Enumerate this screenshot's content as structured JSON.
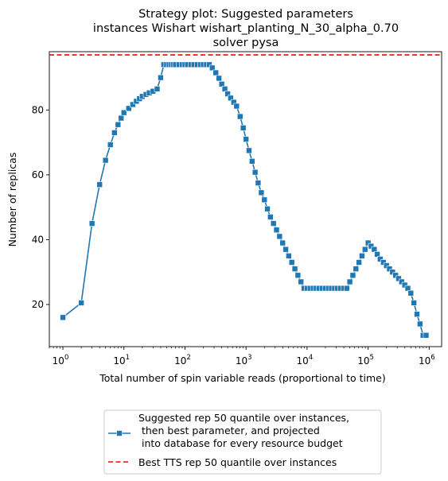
{
  "chart_data": {
    "type": "line",
    "title": [
      "Strategy plot: Suggested parameters",
      "instances Wishart wishart_planting_N_30_alpha_0.70",
      "solver pysa"
    ],
    "xlabel": "Total number of spin variable reads (proportional to time)",
    "ylabel": "Number of replicas",
    "x_scale": "log",
    "xlim": [
      0.6,
      1600000
    ],
    "ylim": [
      7,
      98
    ],
    "x_ticks": [
      {
        "value": 1,
        "base": "10",
        "exp": "0"
      },
      {
        "value": 10,
        "base": "10",
        "exp": "1"
      },
      {
        "value": 100,
        "base": "10",
        "exp": "2"
      },
      {
        "value": 1000,
        "base": "10",
        "exp": "3"
      },
      {
        "value": 10000,
        "base": "10",
        "exp": "4"
      },
      {
        "value": 100000,
        "base": "10",
        "exp": "5"
      },
      {
        "value": 1000000,
        "base": "10",
        "exp": "6"
      }
    ],
    "y_ticks": [
      20,
      40,
      60,
      80
    ],
    "grid": false,
    "legend_position": "below chart",
    "series": [
      {
        "name": "Suggested rep 50 quantile over instances,\n then best parameter, and projected\n into database for every resource budget",
        "style": "solid line with square markers",
        "color": "#1f77b4",
        "x": [
          1,
          2,
          3,
          4,
          5,
          6,
          7,
          8,
          9,
          10,
          12,
          14,
          16,
          18,
          20,
          23,
          26,
          30,
          35,
          40,
          45,
          50,
          55,
          60,
          65,
          70,
          80,
          90,
          100,
          110,
          125,
          140,
          160,
          180,
          200,
          225,
          250,
          280,
          320,
          360,
          400,
          450,
          500,
          560,
          630,
          700,
          800,
          900,
          1000,
          1120,
          1260,
          1410,
          1580,
          1780,
          2000,
          2240,
          2510,
          2820,
          3160,
          3550,
          3980,
          4470,
          5010,
          5620,
          6310,
          7080,
          7940,
          8910,
          10000,
          11200,
          12600,
          14100,
          15800,
          17800,
          20000,
          22400,
          25100,
          28200,
          31600,
          35500,
          39800,
          44700,
          50100,
          56200,
          63100,
          70800,
          79400,
          89100,
          100000,
          112000,
          126000,
          141000,
          158000,
          178000,
          200000,
          224000,
          251000,
          282000,
          316000,
          355000,
          398000,
          447000,
          501000,
          562000,
          631000,
          708000,
          794000,
          891000
        ],
        "values": [
          16,
          20.5,
          45,
          57,
          64.5,
          69.3,
          73,
          75.5,
          77.5,
          79.2,
          80.5,
          81.7,
          82.7,
          83.5,
          84.2,
          84.8,
          85.3,
          85.8,
          86.5,
          90,
          94,
          94,
          94,
          94,
          94,
          94,
          94,
          94,
          94,
          94,
          94,
          94,
          94,
          94,
          94,
          94,
          94,
          93,
          91.5,
          89.8,
          88,
          86.5,
          85,
          83.7,
          82.4,
          81.2,
          78,
          74.5,
          71,
          67.5,
          64.2,
          60.8,
          57.5,
          54.5,
          52.3,
          49.5,
          47,
          45,
          43,
          41,
          39,
          37,
          35,
          33,
          31,
          29,
          27,
          25,
          25,
          25,
          25,
          25,
          25,
          25,
          25,
          25,
          25,
          25,
          25,
          25,
          25,
          25,
          27,
          29,
          31,
          33,
          35,
          37,
          39,
          38,
          37,
          35.5,
          34,
          33,
          32,
          31,
          30,
          29,
          28,
          27,
          26,
          25,
          23.5,
          20.5,
          17,
          14,
          10.5,
          10.5
        ]
      },
      {
        "name": "Best TTS rep 50 quantile over instances",
        "style": "dashed horizontal line",
        "color": "#ff0000",
        "y": 97
      }
    ]
  }
}
